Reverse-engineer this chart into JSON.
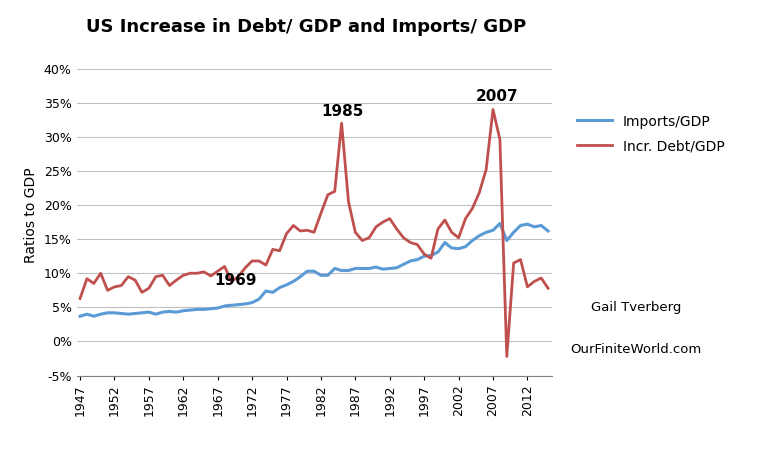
{
  "title": "US Increase in Debt/ GDP and Imports/ GDP",
  "ylabel": "Ratios to GDP",
  "ylim": [
    -0.05,
    0.42
  ],
  "yticks": [
    -0.05,
    0.0,
    0.05,
    0.1,
    0.15,
    0.2,
    0.25,
    0.3,
    0.35,
    0.4
  ],
  "xlim": [
    1947,
    2015
  ],
  "xticks": [
    1947,
    1952,
    1957,
    1962,
    1967,
    1972,
    1977,
    1982,
    1987,
    1992,
    1997,
    2002,
    2007,
    2012
  ],
  "imports_color": "#5B9BD5",
  "debt_color": "#C0504D",
  "imports_label": "Imports/GDP",
  "debt_label": "Incr. Debt/GDP",
  "annotation_1969": "1969",
  "annotation_1985": "1985",
  "annotation_2007": "2007",
  "credit_line1": "Gail Tverberg",
  "credit_line2": "OurFiniteWorld.com",
  "imports_data": [
    [
      1947,
      0.037
    ],
    [
      1948,
      0.04
    ],
    [
      1949,
      0.037
    ],
    [
      1950,
      0.04
    ],
    [
      1951,
      0.042
    ],
    [
      1952,
      0.042
    ],
    [
      1953,
      0.041
    ],
    [
      1954,
      0.04
    ],
    [
      1955,
      0.041
    ],
    [
      1956,
      0.042
    ],
    [
      1957,
      0.043
    ],
    [
      1958,
      0.04
    ],
    [
      1959,
      0.043
    ],
    [
      1960,
      0.044
    ],
    [
      1961,
      0.043
    ],
    [
      1962,
      0.045
    ],
    [
      1963,
      0.046
    ],
    [
      1964,
      0.047
    ],
    [
      1965,
      0.047
    ],
    [
      1966,
      0.048
    ],
    [
      1967,
      0.049
    ],
    [
      1968,
      0.052
    ],
    [
      1969,
      0.053
    ],
    [
      1970,
      0.054
    ],
    [
      1971,
      0.055
    ],
    [
      1972,
      0.057
    ],
    [
      1973,
      0.062
    ],
    [
      1974,
      0.074
    ],
    [
      1975,
      0.072
    ],
    [
      1976,
      0.079
    ],
    [
      1977,
      0.083
    ],
    [
      1978,
      0.088
    ],
    [
      1979,
      0.095
    ],
    [
      1980,
      0.103
    ],
    [
      1981,
      0.103
    ],
    [
      1982,
      0.097
    ],
    [
      1983,
      0.097
    ],
    [
      1984,
      0.107
    ],
    [
      1985,
      0.104
    ],
    [
      1986,
      0.104
    ],
    [
      1987,
      0.107
    ],
    [
      1988,
      0.107
    ],
    [
      1989,
      0.107
    ],
    [
      1990,
      0.109
    ],
    [
      1991,
      0.106
    ],
    [
      1992,
      0.107
    ],
    [
      1993,
      0.108
    ],
    [
      1994,
      0.113
    ],
    [
      1995,
      0.118
    ],
    [
      1996,
      0.12
    ],
    [
      1997,
      0.125
    ],
    [
      1998,
      0.126
    ],
    [
      1999,
      0.131
    ],
    [
      2000,
      0.145
    ],
    [
      2001,
      0.137
    ],
    [
      2002,
      0.136
    ],
    [
      2003,
      0.139
    ],
    [
      2004,
      0.148
    ],
    [
      2005,
      0.155
    ],
    [
      2006,
      0.16
    ],
    [
      2007,
      0.163
    ],
    [
      2008,
      0.173
    ],
    [
      2009,
      0.148
    ],
    [
      2010,
      0.16
    ],
    [
      2011,
      0.17
    ],
    [
      2012,
      0.172
    ],
    [
      2013,
      0.168
    ],
    [
      2014,
      0.17
    ],
    [
      2015,
      0.162
    ]
  ],
  "debt_data": [
    [
      1947,
      0.063
    ],
    [
      1948,
      0.092
    ],
    [
      1949,
      0.085
    ],
    [
      1950,
      0.1
    ],
    [
      1951,
      0.075
    ],
    [
      1952,
      0.08
    ],
    [
      1953,
      0.082
    ],
    [
      1954,
      0.095
    ],
    [
      1955,
      0.09
    ],
    [
      1956,
      0.072
    ],
    [
      1957,
      0.078
    ],
    [
      1958,
      0.095
    ],
    [
      1959,
      0.097
    ],
    [
      1960,
      0.082
    ],
    [
      1961,
      0.09
    ],
    [
      1962,
      0.097
    ],
    [
      1963,
      0.1
    ],
    [
      1964,
      0.1
    ],
    [
      1965,
      0.102
    ],
    [
      1966,
      0.096
    ],
    [
      1967,
      0.103
    ],
    [
      1968,
      0.11
    ],
    [
      1969,
      0.088
    ],
    [
      1970,
      0.095
    ],
    [
      1971,
      0.108
    ],
    [
      1972,
      0.118
    ],
    [
      1973,
      0.118
    ],
    [
      1974,
      0.112
    ],
    [
      1975,
      0.135
    ],
    [
      1976,
      0.133
    ],
    [
      1977,
      0.158
    ],
    [
      1978,
      0.17
    ],
    [
      1979,
      0.162
    ],
    [
      1980,
      0.163
    ],
    [
      1981,
      0.16
    ],
    [
      1982,
      0.188
    ],
    [
      1983,
      0.215
    ],
    [
      1984,
      0.22
    ],
    [
      1985,
      0.32
    ],
    [
      1986,
      0.205
    ],
    [
      1987,
      0.16
    ],
    [
      1988,
      0.148
    ],
    [
      1989,
      0.152
    ],
    [
      1990,
      0.168
    ],
    [
      1991,
      0.175
    ],
    [
      1992,
      0.18
    ],
    [
      1993,
      0.165
    ],
    [
      1994,
      0.152
    ],
    [
      1995,
      0.145
    ],
    [
      1996,
      0.142
    ],
    [
      1997,
      0.128
    ],
    [
      1998,
      0.122
    ],
    [
      1999,
      0.165
    ],
    [
      2000,
      0.178
    ],
    [
      2001,
      0.16
    ],
    [
      2002,
      0.152
    ],
    [
      2003,
      0.18
    ],
    [
      2004,
      0.195
    ],
    [
      2005,
      0.218
    ],
    [
      2006,
      0.252
    ],
    [
      2007,
      0.34
    ],
    [
      2008,
      0.296
    ],
    [
      2009,
      -0.022
    ],
    [
      2010,
      0.115
    ],
    [
      2011,
      0.12
    ],
    [
      2012,
      0.08
    ],
    [
      2013,
      0.088
    ],
    [
      2014,
      0.093
    ],
    [
      2015,
      0.078
    ]
  ]
}
